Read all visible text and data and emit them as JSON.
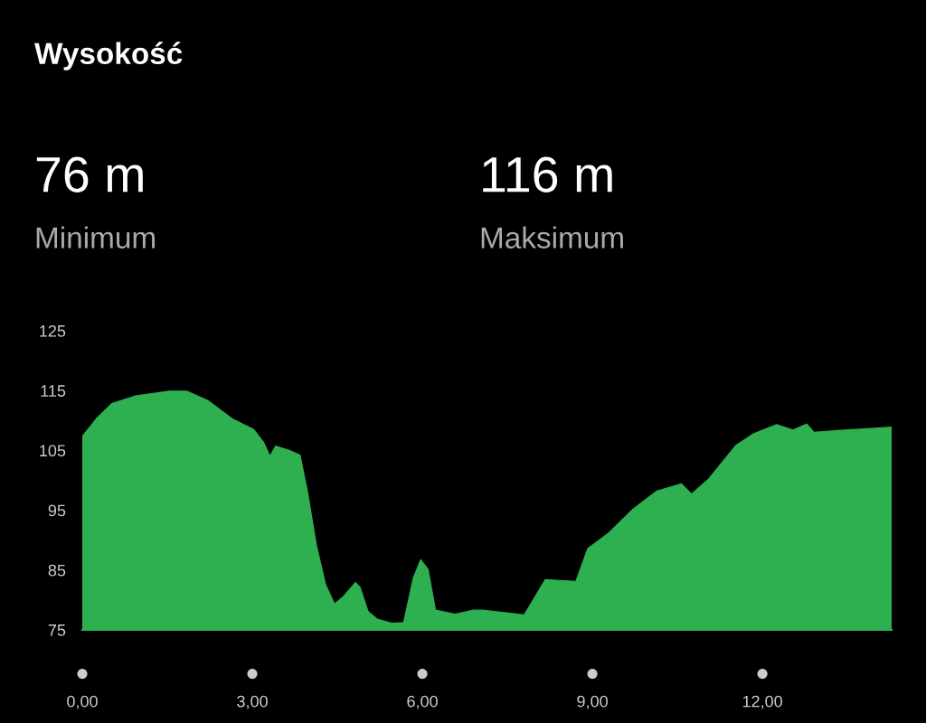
{
  "chart_data": {
    "type": "area",
    "title": "Wysokość",
    "annotations": [
      "76 m",
      "Minimum",
      "116 m",
      "Maksimum"
    ],
    "xlim": [
      0,
      14.28
    ],
    "ylim": [
      75,
      125
    ],
    "xticks": [
      {
        "value": 0,
        "label": "0,00"
      },
      {
        "value": 3,
        "label": "3,00"
      },
      {
        "value": 6,
        "label": "6,00"
      },
      {
        "value": 9,
        "label": "9,00"
      },
      {
        "value": 12,
        "label": "12,00"
      }
    ],
    "yticks": [
      75,
      85,
      95,
      105,
      115,
      125
    ],
    "grid": false,
    "series": [
      {
        "color": "#2fb050",
        "x": [
          0,
          0.04,
          0.25,
          0.52,
          0.94,
          1.53,
          1.84,
          2.22,
          2.64,
          3.02,
          3.2,
          3.31,
          3.41,
          3.65,
          3.84,
          3.97,
          4.13,
          4.29,
          4.45,
          4.61,
          4.82,
          4.9,
          5.04,
          5.2,
          5.46,
          5.67,
          5.84,
          5.97,
          6.1,
          6.23,
          6.58,
          6.9,
          7.06,
          7.8,
          8.17,
          8.71,
          8.92,
          9.29,
          9.72,
          10.14,
          10.57,
          10.75,
          11.05,
          11.53,
          11.85,
          12.25,
          12.54,
          12.78,
          12.91,
          13.44,
          13.97,
          14.28
        ],
        "values": [
          107.3,
          107.8,
          110.3,
          112.8,
          114.1,
          114.9,
          114.9,
          113.3,
          110.3,
          108.5,
          106.3,
          104.0,
          105.7,
          105.0,
          104.2,
          98.2,
          89.1,
          82.6,
          79.3,
          80.6,
          82.9,
          82.1,
          78.1,
          76.8,
          76.1,
          76.2,
          83.6,
          86.7,
          85.1,
          78.3,
          77.6,
          78.3,
          78.3,
          77.5,
          83.4,
          83.1,
          88.6,
          91.2,
          95.2,
          98.2,
          99.4,
          97.7,
          100.2,
          105.8,
          107.8,
          109.3,
          108.4,
          109.4,
          108.0,
          108.4,
          108.7,
          108.9
        ]
      }
    ]
  }
}
